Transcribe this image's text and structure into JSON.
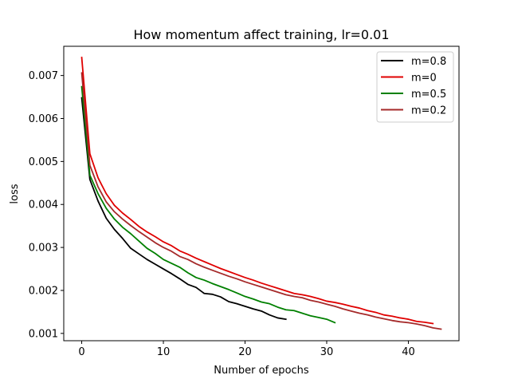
{
  "chart_data": {
    "type": "line",
    "title": "How momentum affect training, lr=0.01",
    "xlabel": "Number of epochs",
    "ylabel": "loss",
    "xlim": [
      -2.2,
      46.2
    ],
    "ylim": [
      0.00083,
      0.00768
    ],
    "x_ticks": [
      0,
      10,
      20,
      30,
      40
    ],
    "y_ticks": [
      0.001,
      0.002,
      0.003,
      0.004,
      0.005,
      0.006,
      0.007
    ],
    "y_tick_labels": [
      "0.001",
      "0.002",
      "0.003",
      "0.004",
      "0.005",
      "0.006",
      "0.007"
    ],
    "grid": false,
    "legend_position": "top-right",
    "series": [
      {
        "name": "m=0.8",
        "color": "#000000",
        "x": [
          0,
          1,
          2,
          3,
          4,
          5,
          6,
          7,
          8,
          9,
          10,
          11,
          12,
          13,
          14,
          15,
          16,
          17,
          18,
          19,
          20,
          21,
          22,
          23,
          24,
          25
        ],
        "values": [
          0.00648,
          0.00458,
          0.00408,
          0.00368,
          0.00342,
          0.00321,
          0.00298,
          0.00285,
          0.00272,
          0.00261,
          0.0025,
          0.00239,
          0.00227,
          0.00214,
          0.00207,
          0.00193,
          0.00191,
          0.00185,
          0.00174,
          0.00169,
          0.00163,
          0.00157,
          0.00152,
          0.00143,
          0.00136,
          0.00133
        ]
      },
      {
        "name": "m=0",
        "color": "#e00000",
        "x": [
          0,
          1,
          2,
          3,
          4,
          5,
          6,
          7,
          8,
          9,
          10,
          11,
          12,
          13,
          14,
          15,
          16,
          17,
          18,
          19,
          20,
          21,
          22,
          23,
          24,
          25,
          26,
          27,
          28,
          29,
          30,
          31,
          32,
          33,
          34,
          35,
          36,
          37,
          38,
          39,
          40,
          41,
          42,
          43
        ],
        "values": [
          0.00742,
          0.00518,
          0.00462,
          0.00425,
          0.00398,
          0.0038,
          0.00365,
          0.00349,
          0.00336,
          0.00325,
          0.00313,
          0.00304,
          0.00292,
          0.00284,
          0.00275,
          0.00267,
          0.00259,
          0.00251,
          0.00244,
          0.00237,
          0.0023,
          0.00224,
          0.00217,
          0.00211,
          0.00205,
          0.00199,
          0.00193,
          0.0019,
          0.00186,
          0.00181,
          0.00175,
          0.00172,
          0.00168,
          0.00163,
          0.00159,
          0.00153,
          0.00149,
          0.00143,
          0.0014,
          0.00136,
          0.00133,
          0.00128,
          0.00126,
          0.00123
        ]
      },
      {
        "name": "m=0.5",
        "color": "#008000",
        "x": [
          0,
          1,
          2,
          3,
          4,
          5,
          6,
          7,
          8,
          9,
          10,
          11,
          12,
          13,
          14,
          15,
          16,
          17,
          18,
          19,
          20,
          21,
          22,
          23,
          24,
          25,
          26,
          27,
          28,
          29,
          30,
          31
        ],
        "values": [
          0.00674,
          0.00468,
          0.00425,
          0.00391,
          0.00366,
          0.00347,
          0.00332,
          0.00315,
          0.00298,
          0.00286,
          0.00272,
          0.00263,
          0.00254,
          0.00241,
          0.0023,
          0.00224,
          0.00216,
          0.00209,
          0.00202,
          0.00194,
          0.00186,
          0.0018,
          0.00173,
          0.00169,
          0.00161,
          0.00155,
          0.00153,
          0.00147,
          0.00141,
          0.00137,
          0.00133,
          0.00125
        ]
      },
      {
        "name": "m=0.2",
        "color": "#a52a2a",
        "x": [
          0,
          1,
          2,
          3,
          4,
          5,
          6,
          7,
          8,
          9,
          10,
          11,
          12,
          13,
          14,
          15,
          16,
          17,
          18,
          19,
          20,
          21,
          22,
          23,
          24,
          25,
          26,
          27,
          28,
          29,
          30,
          31,
          32,
          33,
          34,
          35,
          36,
          37,
          38,
          39,
          40,
          41,
          42,
          43,
          44
        ],
        "values": [
          0.00706,
          0.00491,
          0.00441,
          0.00406,
          0.00383,
          0.00366,
          0.00351,
          0.00337,
          0.00324,
          0.00311,
          0.003,
          0.00291,
          0.00279,
          0.00272,
          0.00262,
          0.00254,
          0.00247,
          0.0024,
          0.00233,
          0.00227,
          0.0022,
          0.00214,
          0.00208,
          0.00202,
          0.00196,
          0.0019,
          0.00186,
          0.00183,
          0.00177,
          0.00173,
          0.00168,
          0.00163,
          0.00157,
          0.00152,
          0.00147,
          0.00143,
          0.00138,
          0.00134,
          0.0013,
          0.00127,
          0.00125,
          0.00122,
          0.00118,
          0.00113,
          0.0011
        ]
      }
    ]
  }
}
